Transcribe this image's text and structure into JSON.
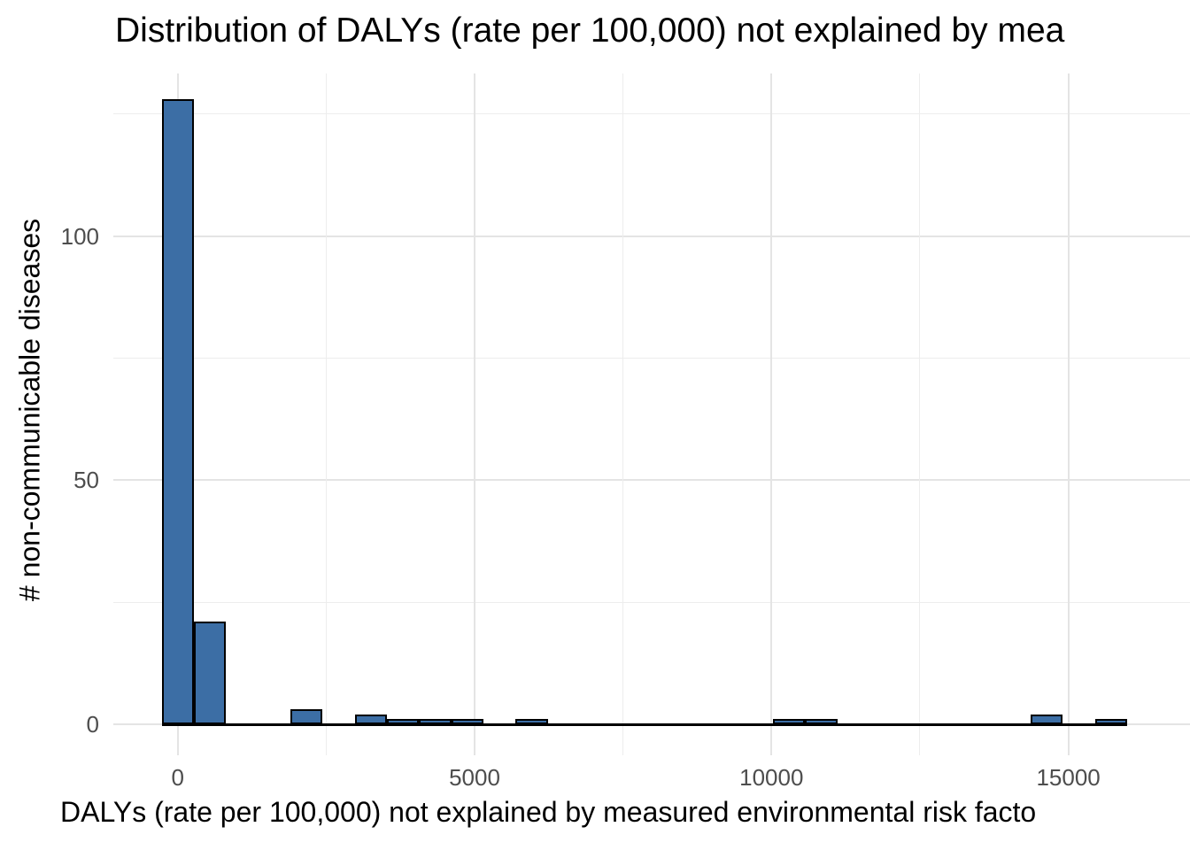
{
  "chart": {
    "title": "Distribution of DALYs (rate per 100,000) not explained by mea",
    "x_axis_label": "DALYs (rate per 100,000) not explained by measured environmental risk facto",
    "y_axis_label": "# non-communicable diseases"
  },
  "chart_data": {
    "type": "bar",
    "subtype": "histogram",
    "title": "Distribution of DALYs (rate per 100,000) not explained by mea",
    "xlabel": "DALYs (rate per 100,000) not explained by measured environmental risk facto",
    "ylabel": "# non-communicable diseases",
    "bin_start": -271,
    "bin_width": 542,
    "counts": [
      128,
      21,
      0,
      0,
      3,
      0,
      2,
      1,
      1,
      1,
      0,
      1,
      0,
      0,
      0,
      0,
      0,
      0,
      0,
      1,
      1,
      0,
      0,
      0,
      0,
      0,
      0,
      2,
      0,
      1
    ],
    "x_ticks": [
      0,
      5000,
      10000,
      15000
    ],
    "x_tick_labels": [
      "0",
      "5000",
      "10000",
      "15000"
    ],
    "x_minor_ticks": [
      2500,
      7500,
      12500
    ],
    "y_ticks": [
      0,
      50,
      100
    ],
    "y_tick_labels": [
      "0",
      "50",
      "100"
    ],
    "y_minor_ticks": [
      25,
      75,
      125
    ],
    "xlim": [
      -1084,
      17050
    ],
    "ylim": [
      -6.3,
      133.3
    ],
    "grid": true,
    "legend": false,
    "colors": {
      "bar_fill": "#3C6EA5",
      "bar_border": "#000000",
      "grid_major": "#E4E4E4",
      "grid_minor": "#EDEDED",
      "tick_label": "#4D4D4D",
      "text": "#000000",
      "background": "#FFFFFF"
    }
  }
}
